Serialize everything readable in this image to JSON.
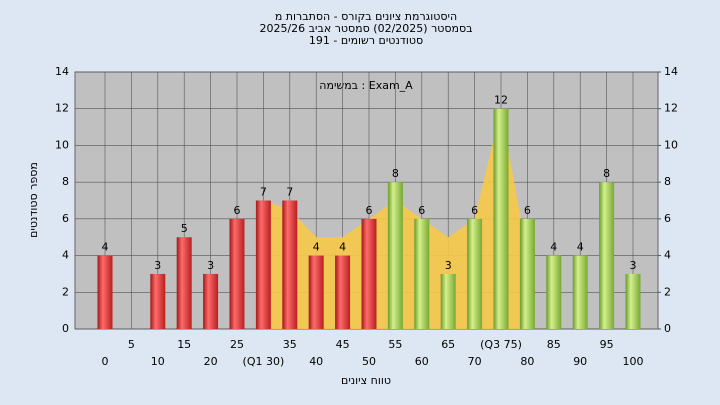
{
  "chart_data": {
    "type": "bar",
    "title_lines": [
      "היסטוגרמת ציונים בקורס - הסתברות מ",
      "בסמסטר  (02/2025)  סמסטר אביב 2025/26",
      "סטודנטים רשומים - 191"
    ],
    "annotation": "במשימה : Exam_A",
    "x_label": "טווח ציונים",
    "y_label": "מספר סטודנטים",
    "categories": [
      "0",
      "5",
      "10",
      "15",
      "20",
      "25",
      "(Q1 30)",
      "35",
      "40",
      "45",
      "50",
      "55",
      "60",
      "65",
      "70",
      "(Q3 75)",
      "80",
      "85",
      "90",
      "95",
      "100"
    ],
    "values": [
      4,
      0,
      3,
      5,
      3,
      6,
      7,
      7,
      4,
      4,
      6,
      8,
      6,
      3,
      6,
      12,
      6,
      4,
      4,
      8,
      3
    ],
    "value_labels": [
      "4",
      null,
      "3",
      "5",
      "3",
      "6",
      "7",
      "7",
      "4",
      "4",
      "6",
      "8",
      "6",
      "3",
      "6",
      "12",
      "6",
      "4",
      "4",
      "8",
      "3"
    ],
    "colors": [
      "#e23a3a",
      "#e23a3a",
      "#e23a3a",
      "#e23a3a",
      "#e23a3a",
      "#e23a3a",
      "#e23a3a",
      "#e23a3a",
      "#e23a3a",
      "#e23a3a",
      "#e23a3a",
      "#9dcb55",
      "#9dcb55",
      "#9dcb55",
      "#9dcb55",
      "#9dcb55",
      "#9dcb55",
      "#9dcb55",
      "#9dcb55",
      "#9dcb55",
      "#9dcb55"
    ],
    "overlay": {
      "color": "#f7c948",
      "values": [
        null,
        null,
        null,
        null,
        null,
        null,
        7,
        6.5,
        5,
        5,
        6,
        7,
        6,
        5,
        6,
        12,
        4,
        null,
        null,
        null,
        null
      ]
    },
    "ylim": [
      0,
      14
    ],
    "yticks": [
      0,
      2,
      4,
      6,
      8,
      10,
      12,
      14
    ],
    "y2lim": [
      0,
      14
    ],
    "y2ticks": [
      0,
      2,
      4,
      6,
      8,
      10,
      12,
      14
    ],
    "grid": true
  }
}
